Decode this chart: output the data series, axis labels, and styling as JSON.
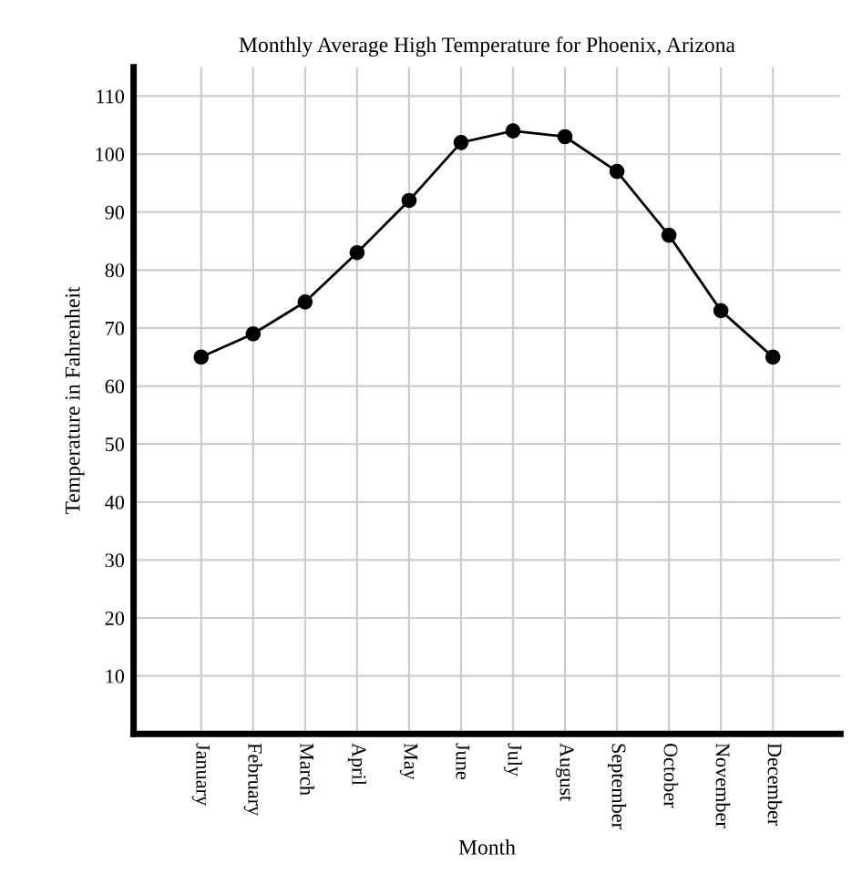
{
  "chart_data": {
    "type": "line",
    "title": "Monthly Average High Temperature for Phoenix, Arizona",
    "xlabel": "Month",
    "ylabel": "Temperature in Fahrenheit",
    "categories": [
      "January",
      "February",
      "March",
      "April",
      "May",
      "June",
      "July",
      "August",
      "September",
      "October",
      "November",
      "December"
    ],
    "series": [
      {
        "color": "#000000",
        "values": [
          65,
          69,
          74.5,
          83,
          92,
          102,
          104,
          103,
          97,
          86,
          73,
          65
        ]
      }
    ],
    "ylim": [
      0,
      115
    ],
    "yticks": [
      10,
      20,
      30,
      40,
      50,
      60,
      70,
      80,
      90,
      100,
      110
    ],
    "grid": true,
    "marker": "circle",
    "line_style": "solid"
  }
}
